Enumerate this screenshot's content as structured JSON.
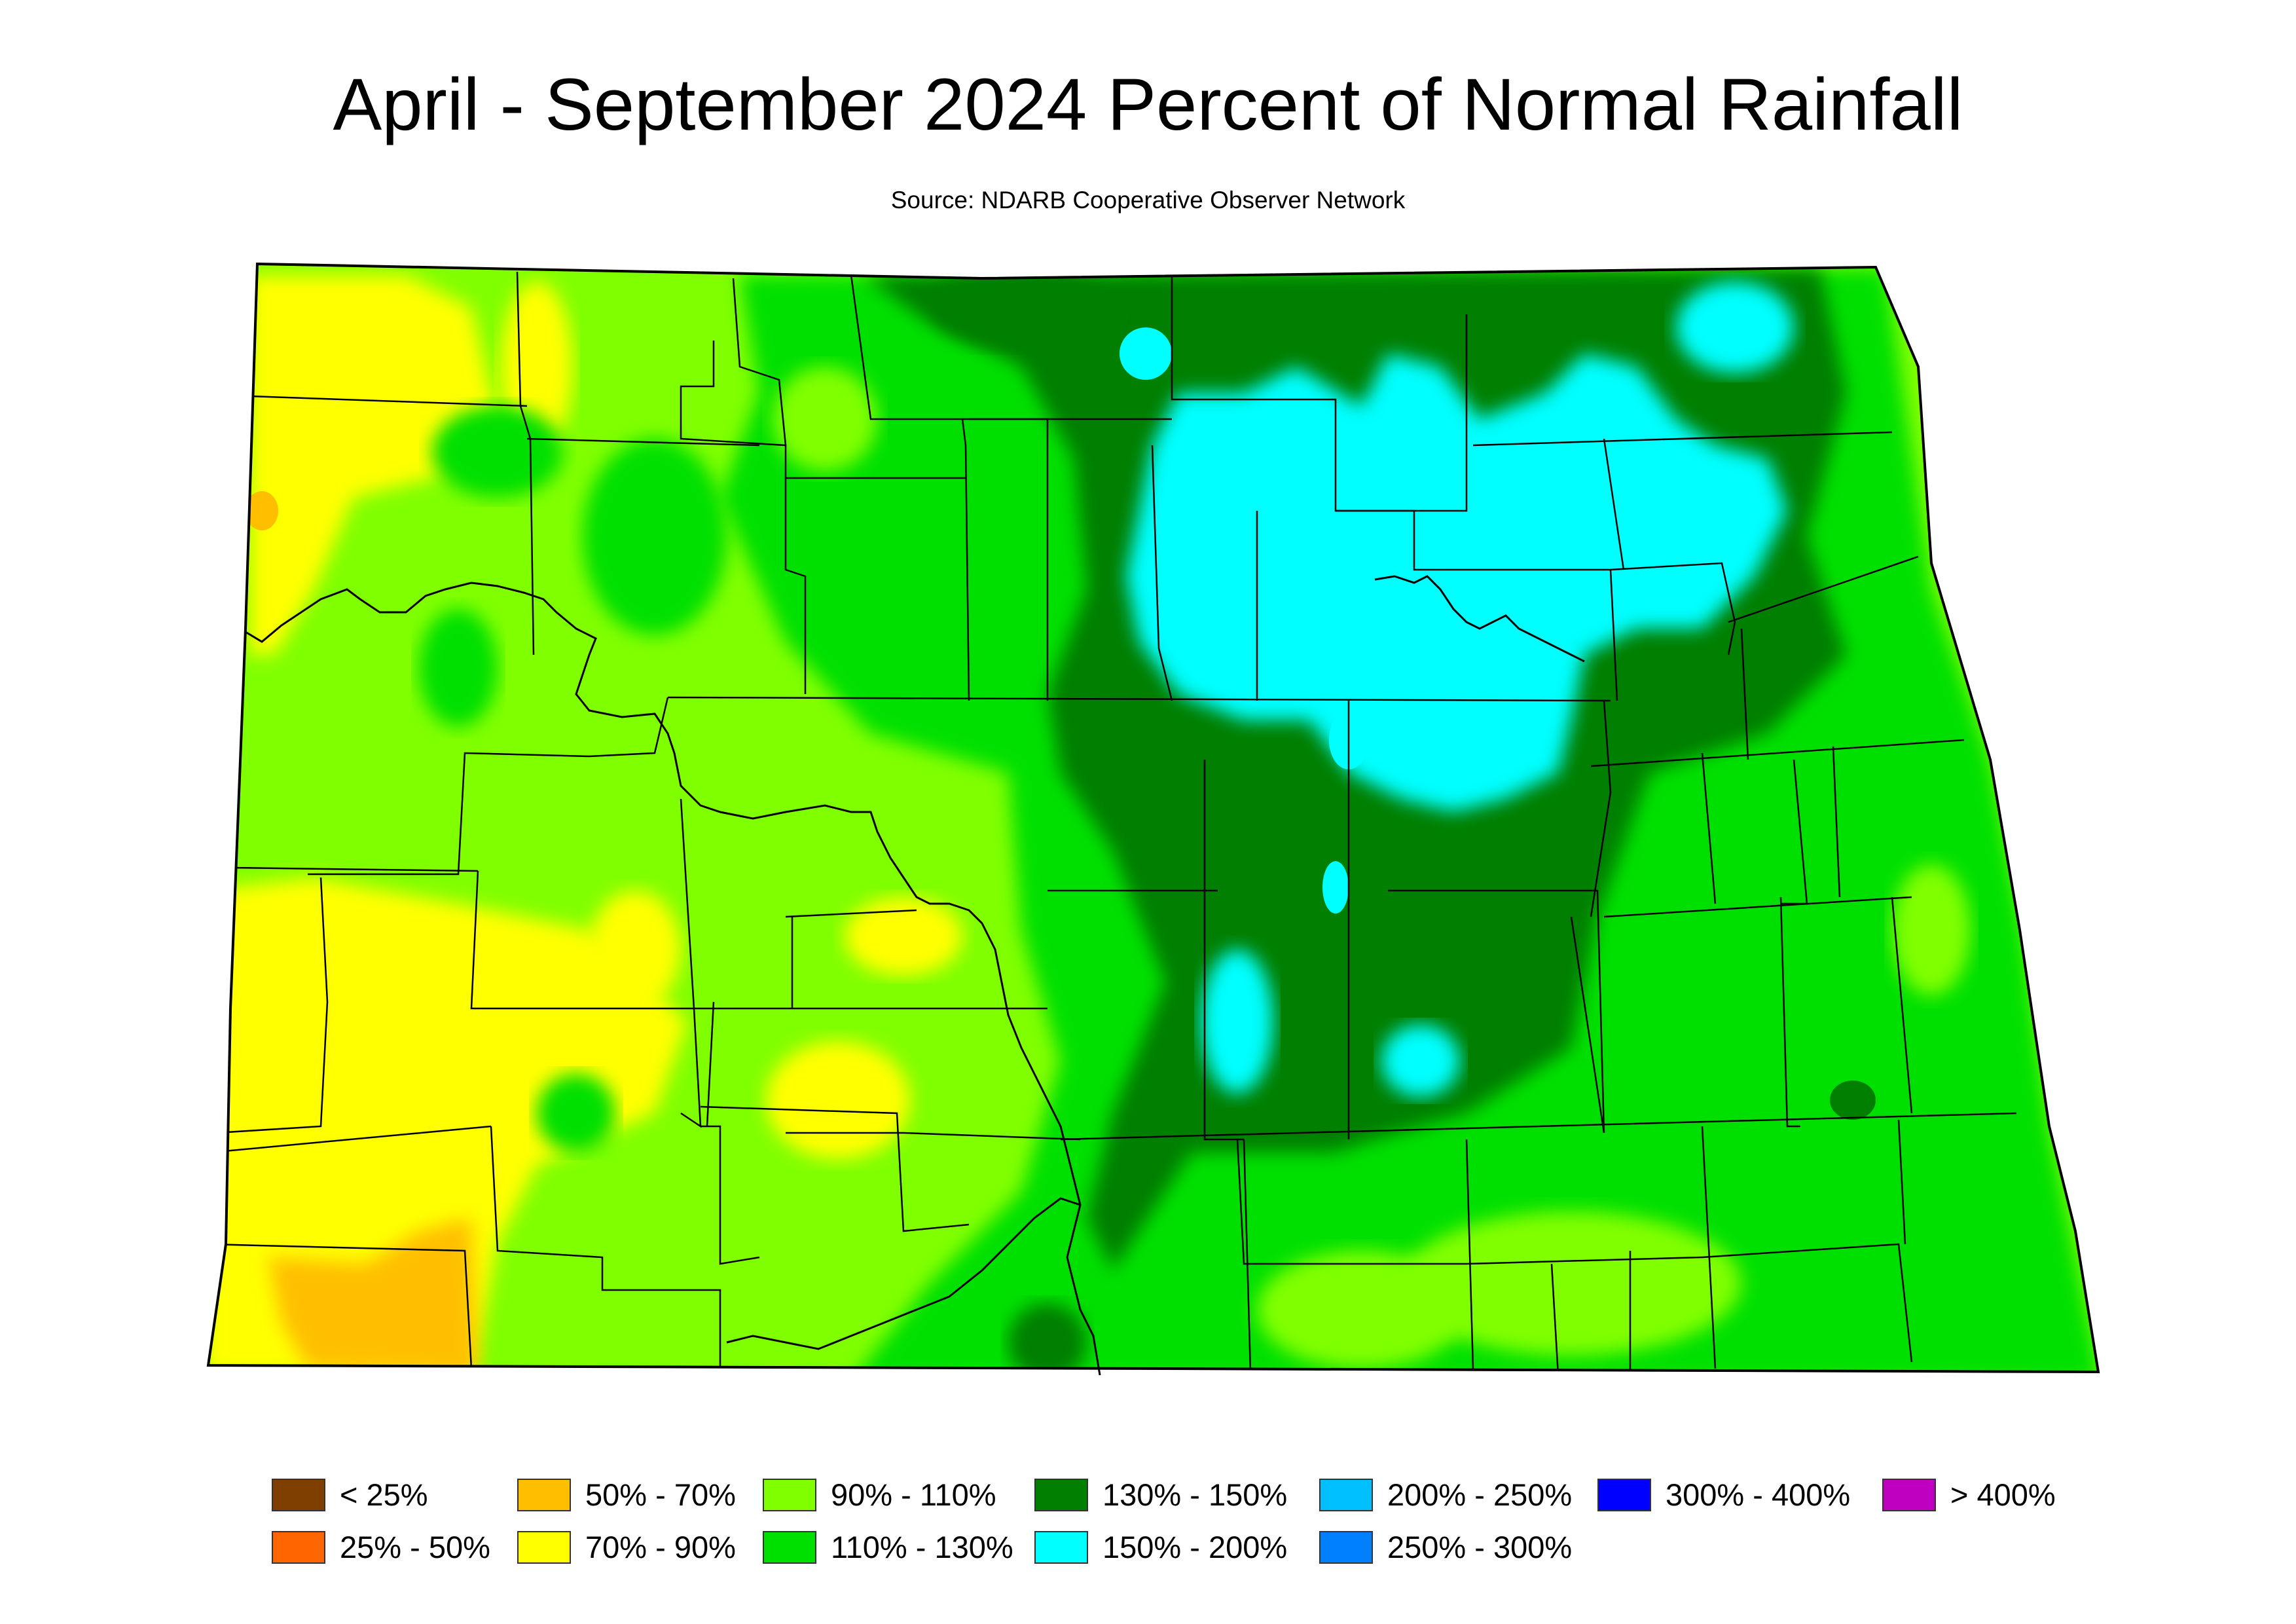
{
  "title": "April - September 2024 Percent of Normal Rainfall",
  "source": "Source: NDARB Cooperative Observer Network",
  "legend": [
    {
      "label": "< 25%",
      "color": "#7f3f00"
    },
    {
      "label": "25% - 50%",
      "color": "#ff6600"
    },
    {
      "label": "50% - 70%",
      "color": "#ffbf00"
    },
    {
      "label": "70% - 90%",
      "color": "#ffff00"
    },
    {
      "label": "90% - 110%",
      "color": "#80ff00"
    },
    {
      "label": "110% - 130%",
      "color": "#00e000"
    },
    {
      "label": "130% - 150%",
      "color": "#007f00"
    },
    {
      "label": "150% - 200%",
      "color": "#00ffff"
    },
    {
      "label": "200% - 250%",
      "color": "#00bfff"
    },
    {
      "label": "250% - 300%",
      "color": "#0080ff"
    },
    {
      "label": "300% - 400%",
      "color": "#0000ff"
    },
    {
      "label": "> 400%",
      "color": "#c000c0"
    }
  ]
}
